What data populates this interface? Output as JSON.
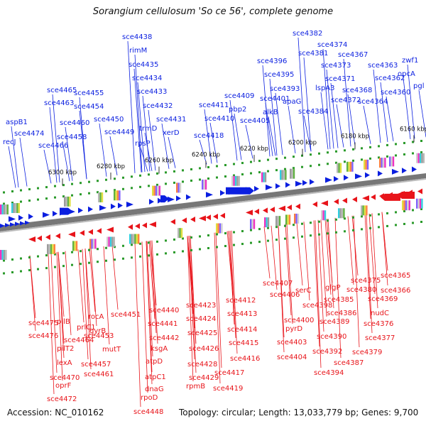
{
  "header": {
    "title": "Sorangium cellulosum 'So ce 56', complete genome"
  },
  "footer": {
    "accession": "Accession: NC_010162",
    "summary": "Topology: circular; Length: 13,033,779 bp; Genes: 9,700"
  },
  "colors": {
    "forward": "#0b1fe0",
    "reverse": "#e8141a",
    "backbone": "#777777",
    "tick": "#2a9a2a"
  },
  "ticks": [
    "6160 kbp",
    "6180 kbp",
    "6200 kbp",
    "6220 kbp",
    "6240 kbp",
    "6260 kbp",
    "6280 kbp",
    "6300 kbp"
  ],
  "forward_genes": [
    "recJ",
    "aspB1",
    "sce4474",
    "sce4466",
    "sce4465",
    "sce4463",
    "sce4460",
    "sce4458",
    "sce4455",
    "sce4454",
    "sce4450",
    "sce4449",
    "sce4438",
    "rimM",
    "sce4435",
    "sce4434",
    "sce4433",
    "sce4432",
    "sce4431",
    "trmD",
    "rpsP",
    "xerD",
    "sce4418",
    "sce4411",
    "sce4410",
    "sce4409",
    "pbp2",
    "sce4405",
    "sce4401",
    "alkB",
    "sce4396",
    "sce4395",
    "sce4393",
    "apaG",
    "sce4382",
    "sce4381",
    "sce4374",
    "sce4384",
    "lspA3",
    "sce4373",
    "sce4372",
    "sce4371",
    "sce4367",
    "sce4368",
    "sce4364",
    "sce4363",
    "sce4362",
    "sce4360",
    "zwf1",
    "opcA",
    "pgl"
  ],
  "reverse_genes": [
    "sce4475",
    "sce4476",
    "pilB",
    "pilT2",
    "lexA",
    "sce4470",
    "oprF",
    "sce4472",
    "prlC1",
    "sce4464",
    "rocA",
    "gyrB",
    "sce4453",
    "mutT",
    "sce4457",
    "sce4461",
    "sce4451",
    "sce4440",
    "sce4441",
    "sce4442",
    "ksgA",
    "atpD",
    "atpC1",
    "dnaG",
    "rpoD",
    "sce4448",
    "sce4423",
    "sce4424",
    "sce4425",
    "sce4426",
    "sce4428",
    "sce4429",
    "rpmB",
    "sce4412",
    "sce4413",
    "sce4414",
    "sce4415",
    "sce4416",
    "sce4417",
    "sce4419",
    "sce4407",
    "sce4406",
    "serC",
    "sce4398",
    "sce4400",
    "pyrD",
    "sce4403",
    "sce4404",
    "sce4392",
    "sce4394",
    "sce4389",
    "sce4390",
    "sce4386",
    "sce4385",
    "glgP",
    "sce4387",
    "sce4380",
    "sce4375",
    "sce4365",
    "sce4366",
    "sce4369",
    "nudC",
    "sce4376",
    "sce4377",
    "sce4379"
  ]
}
